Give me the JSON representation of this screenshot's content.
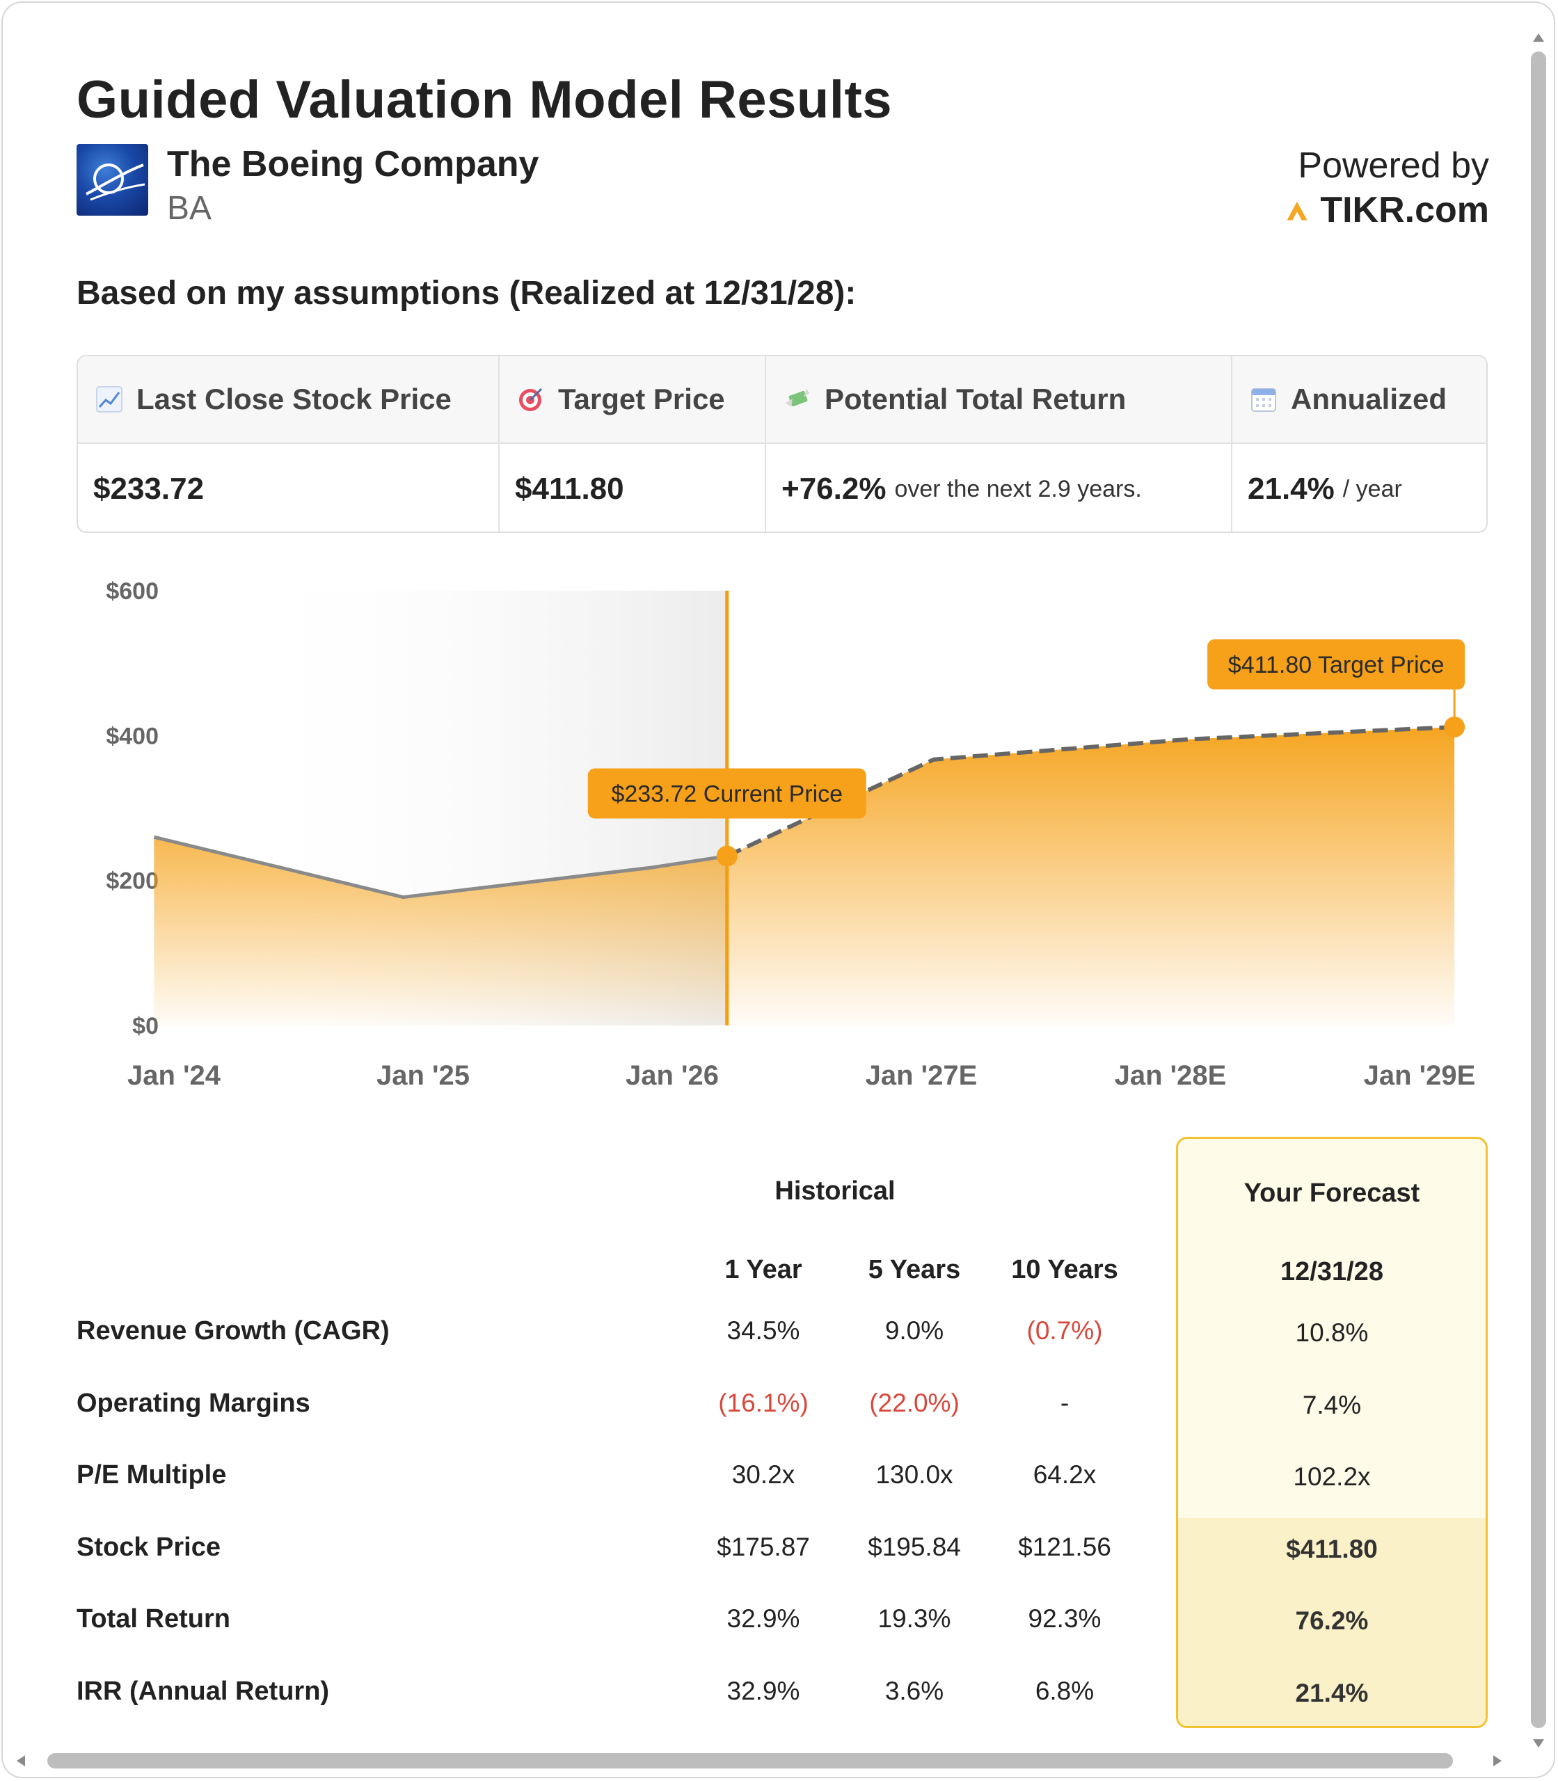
{
  "header": {
    "title": "Guided Valuation Model Results",
    "company_name": "The Boeing Company",
    "ticker": "BA",
    "powered_by": "Powered by",
    "brand": "TIKR.com",
    "logo_icon": "boeing-logo",
    "brand_icon": "tikr-logo"
  },
  "subtitle": "Based on my assumptions (Realized at 12/31/28):",
  "metrics": [
    {
      "icon": "chart-increasing-icon",
      "label": "Last Close Stock Price",
      "value": "$233.72",
      "suffix": ""
    },
    {
      "icon": "target-icon",
      "label": "Target Price",
      "value": "$411.80",
      "suffix": ""
    },
    {
      "icon": "money-with-wings-icon",
      "label": "Potential Total Return",
      "value": "+76.2%",
      "suffix": "over the next 2.9 years."
    },
    {
      "icon": "calendar-icon",
      "label": "Annualized",
      "value": "21.4%",
      "suffix": "/ year"
    }
  ],
  "chart_data": {
    "type": "area",
    "y_ticks": [
      "$600",
      "$400",
      "$200",
      "$0"
    ],
    "x_ticks": [
      "Jan '24",
      "Jan '25",
      "Jan '26",
      "Jan '27E",
      "Jan '28E",
      "Jan '29E"
    ],
    "ylim": [
      0,
      600
    ],
    "historical": {
      "x": [
        "Dec '23",
        "Dec '24",
        "Dec '25",
        "Jan '26"
      ],
      "y": [
        260,
        177,
        218,
        233.72
      ]
    },
    "forecast": {
      "x": [
        "Jan '26",
        "Jan '27E",
        "Jan '28E",
        "Jan '29E"
      ],
      "y": [
        233.72,
        367,
        395,
        411.8
      ]
    },
    "annotations": [
      {
        "label": "$233.72 Current Price",
        "value": 233.72
      },
      {
        "label": "$411.80 Target Price",
        "value": 411.8
      }
    ],
    "colors": {
      "fill": "#f5a015",
      "line_hist": "#8a8a8a",
      "line_forecast": "#666666",
      "marker": "#f7a11a",
      "divider": "#f29d12"
    }
  },
  "table": {
    "historical_header": "Historical",
    "forecast_header": "Your Forecast",
    "columns": [
      "1 Year",
      "5 Years",
      "10 Years"
    ],
    "forecast_column": "12/31/28",
    "rows": [
      {
        "label": "Revenue Growth (CAGR)",
        "values": [
          "34.5%",
          "9.0%",
          "(0.7%)"
        ],
        "negative": [
          false,
          false,
          true
        ],
        "forecast": "10.8%"
      },
      {
        "label": "Operating Margins",
        "values": [
          "(16.1%)",
          "(22.0%)",
          "-"
        ],
        "negative": [
          true,
          true,
          false
        ],
        "forecast": "7.4%"
      },
      {
        "label": "P/E Multiple",
        "values": [
          "30.2x",
          "130.0x",
          "64.2x"
        ],
        "negative": [
          false,
          false,
          false
        ],
        "forecast": "102.2x"
      },
      {
        "label": "Stock Price",
        "values": [
          "$175.87",
          "$195.84",
          "$121.56"
        ],
        "negative": [
          false,
          false,
          false
        ],
        "forecast": "$411.80"
      },
      {
        "label": "Total Return",
        "values": [
          "32.9%",
          "19.3%",
          "92.3%"
        ],
        "negative": [
          false,
          false,
          false
        ],
        "forecast": "76.2%"
      },
      {
        "label": "IRR (Annual Return)",
        "values": [
          "32.9%",
          "3.6%",
          "6.8%"
        ],
        "negative": [
          false,
          false,
          false
        ],
        "forecast": "21.4%"
      }
    ]
  }
}
